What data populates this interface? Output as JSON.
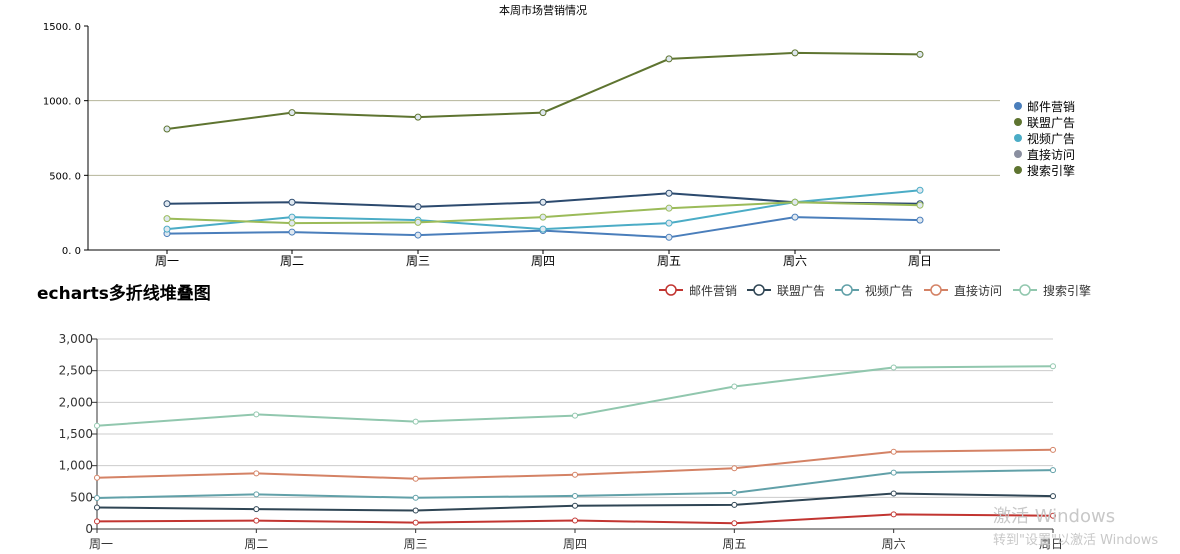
{
  "chart_data": [
    {
      "type": "line",
      "title": "本周市场营销情况",
      "categories": [
        "周一",
        "周二",
        "周三",
        "周四",
        "周五",
        "周六",
        "周日"
      ],
      "ylim": [
        0,
        1500
      ],
      "yticks": [
        "0. 0",
        "500. 0",
        "1000. 0",
        "1500. 0"
      ],
      "ytick_values": [
        0,
        500,
        1000,
        1500
      ],
      "grid": "horizontal at 500 and 1000",
      "legend_position": "right",
      "series": [
        {
          "name": "邮件营销",
          "color": "#4a7ebb",
          "values": [
            110,
            120,
            100,
            130,
            85,
            220,
            200
          ]
        },
        {
          "name": "联盟广告",
          "color": "#2c4a6e",
          "values": [
            310,
            320,
            290,
            320,
            380,
            320,
            310
          ]
        },
        {
          "name": "视频广告",
          "color": "#4bacc6",
          "values": [
            140,
            220,
            200,
            140,
            180,
            320,
            400
          ]
        },
        {
          "name": "直接访问",
          "color": "#9bbb59",
          "values": [
            210,
            180,
            185,
            220,
            280,
            320,
            300
          ]
        },
        {
          "name": "搜索引擎",
          "color": "#5e7430",
          "values": [
            810,
            920,
            890,
            920,
            1280,
            1320,
            1310
          ]
        }
      ],
      "legend": [
        {
          "name": "邮件营销",
          "color": "#4a7ebb"
        },
        {
          "name": "联盟广告",
          "color": "#5e7430"
        },
        {
          "name": "视频广告",
          "color": "#4bacc6"
        },
        {
          "name": "直接访问",
          "color": "#8a8fa0"
        },
        {
          "name": "搜索引擎",
          "color": "#5e7430"
        }
      ]
    },
    {
      "type": "line",
      "stacked": true,
      "title": "echarts多折线堆叠图",
      "categories": [
        "周一",
        "周二",
        "周三",
        "周四",
        "周五",
        "周六",
        "周日"
      ],
      "ylim": [
        0,
        3000
      ],
      "yticks": [
        "0",
        "500",
        "1,000",
        "1,500",
        "2,000",
        "2,500",
        "3,000"
      ],
      "ytick_values": [
        0,
        500,
        1000,
        1500,
        2000,
        2500,
        3000
      ],
      "grid": "horizontal",
      "legend_position": "top-right",
      "series": [
        {
          "name": "邮件营销",
          "color": "#c23531",
          "values": [
            120,
            132,
            101,
            134,
            90,
            230,
            210
          ]
        },
        {
          "name": "联盟广告",
          "color": "#2f4554",
          "values": [
            220,
            182,
            191,
            234,
            290,
            330,
            310
          ]
        },
        {
          "name": "视频广告",
          "color": "#61a0a8",
          "values": [
            150,
            232,
            201,
            154,
            190,
            330,
            410
          ]
        },
        {
          "name": "直接访问",
          "color": "#d48265",
          "values": [
            320,
            332,
            301,
            334,
            390,
            330,
            320
          ]
        },
        {
          "name": "搜索引擎",
          "color": "#91c7ae",
          "values": [
            820,
            932,
            901,
            934,
            1290,
            1330,
            1320
          ]
        }
      ]
    }
  ],
  "watermark": {
    "line1": "激活 Windows",
    "line2": "转到\"设置\"以激活 Windows"
  }
}
